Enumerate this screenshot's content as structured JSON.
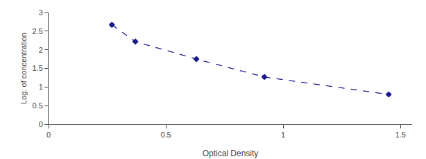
{
  "chart_data": {
    "type": "line",
    "xlabel": "Optical Density",
    "ylabel": "Log. of concentration",
    "x": [
      0.27,
      0.37,
      0.63,
      0.92,
      1.45
    ],
    "values": [
      2.67,
      2.22,
      1.75,
      1.27,
      0.8
    ],
    "yerr": [
      0.04,
      0.03,
      0.03,
      0.03,
      0.03
    ],
    "xlim": [
      0,
      1.55
    ],
    "ylim": [
      0,
      3.0
    ],
    "xticks": [
      0,
      0.5,
      1,
      1.5
    ],
    "yticks": [
      0,
      0.5,
      1,
      1.5,
      2,
      2.5,
      3
    ],
    "color": "#1a1a8c",
    "marker": "diamond",
    "line_style": "dashed",
    "grid": false
  }
}
